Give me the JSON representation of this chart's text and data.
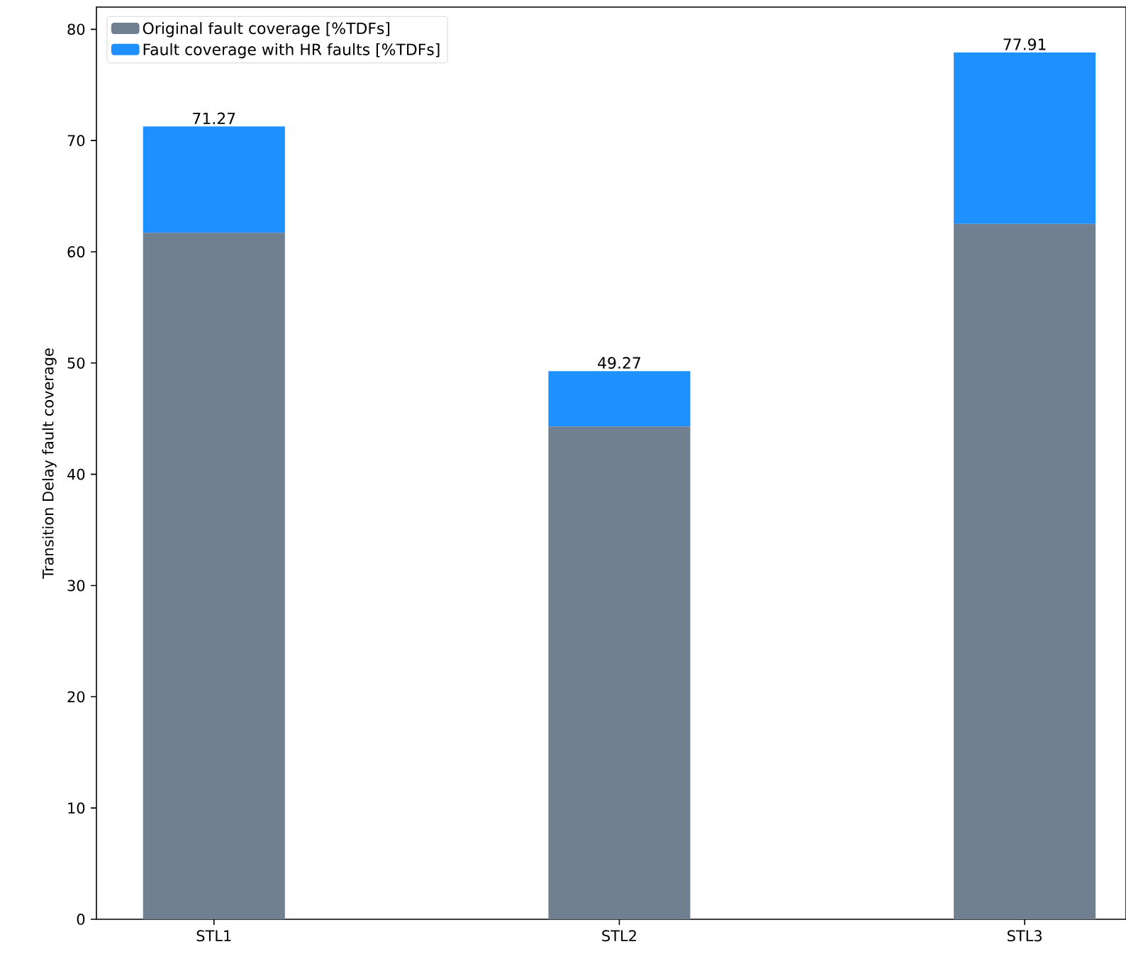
{
  "chart_data": {
    "type": "bar",
    "stacked": true,
    "ylabel": "Transition Delay fault coverage",
    "categories": [
      "STL1",
      "STL2",
      "STL3"
    ],
    "series": [
      {
        "name": "Original fault coverage [%TDFs]",
        "color": "#708090",
        "values": [
          61.7,
          44.3,
          62.5
        ]
      },
      {
        "name": "Fault coverage with HR faults [%TDFs]",
        "color": "#1e90ff",
        "values": [
          9.57,
          4.97,
          15.41
        ]
      }
    ],
    "totals": [
      "71.27",
      "49.27",
      "77.91"
    ],
    "ylim": [
      0,
      82
    ],
    "yticks": [
      0,
      10,
      20,
      30,
      40,
      50,
      60,
      70,
      80
    ],
    "legend": "top left"
  }
}
